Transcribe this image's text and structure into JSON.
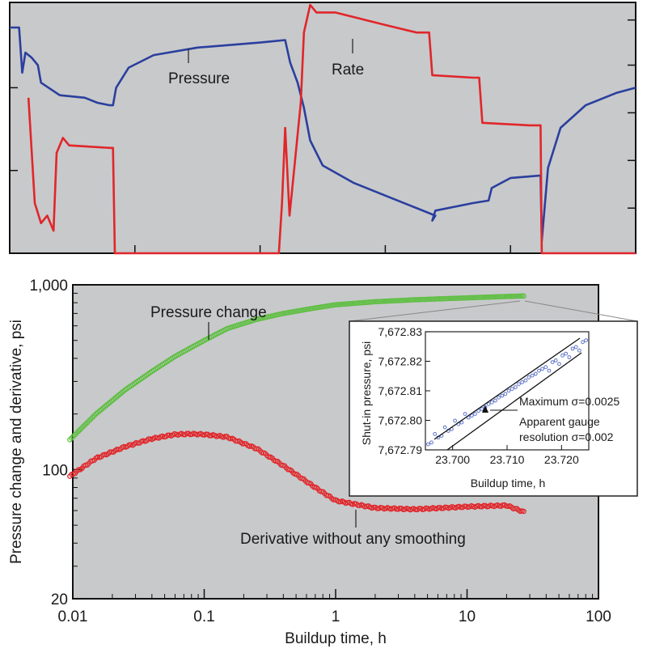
{
  "chart_data": [
    {
      "type": "line",
      "title": "",
      "xlabel": "",
      "ylabel": "",
      "annotations": [
        "Pressure",
        "Rate"
      ],
      "series": [
        {
          "name": "Pressure",
          "color": "#2a3f9e",
          "points": [
            [
              0.0,
              0.9
            ],
            [
              0.015,
              0.9
            ],
            [
              0.02,
              0.72
            ],
            [
              0.025,
              0.8
            ],
            [
              0.035,
              0.78
            ],
            [
              0.045,
              0.75
            ],
            [
              0.05,
              0.68
            ],
            [
              0.08,
              0.63
            ],
            [
              0.12,
              0.62
            ],
            [
              0.14,
              0.6
            ],
            [
              0.16,
              0.59
            ],
            [
              0.165,
              0.59
            ],
            [
              0.17,
              0.66
            ],
            [
              0.19,
              0.74
            ],
            [
              0.23,
              0.79
            ],
            [
              0.3,
              0.82
            ],
            [
              0.4,
              0.84
            ],
            [
              0.44,
              0.85
            ],
            [
              0.448,
              0.76
            ],
            [
              0.46,
              0.68
            ],
            [
              0.47,
              0.58
            ],
            [
              0.48,
              0.45
            ],
            [
              0.5,
              0.35
            ],
            [
              0.55,
              0.28
            ],
            [
              0.62,
              0.21
            ],
            [
              0.68,
              0.15
            ],
            [
              0.675,
              0.13
            ],
            [
              0.68,
              0.17
            ],
            [
              0.74,
              0.2
            ],
            [
              0.765,
              0.21
            ],
            [
              0.77,
              0.26
            ],
            [
              0.8,
              0.3
            ],
            [
              0.848,
              0.31
            ],
            [
              0.85,
              0.05
            ],
            [
              0.86,
              0.34
            ],
            [
              0.88,
              0.5
            ],
            [
              0.92,
              0.59
            ],
            [
              0.97,
              0.64
            ],
            [
              1.0,
              0.66
            ]
          ]
        },
        {
          "name": "Rate",
          "color": "#e0262a",
          "points": [
            [
              0.03,
              0.62
            ],
            [
              0.04,
              0.2
            ],
            [
              0.05,
              0.12
            ],
            [
              0.06,
              0.15
            ],
            [
              0.07,
              0.09
            ],
            [
              0.075,
              0.4
            ],
            [
              0.085,
              0.46
            ],
            [
              0.095,
              0.43
            ],
            [
              0.16,
              0.42
            ],
            [
              0.165,
              0.42
            ],
            [
              0.168,
              0.0
            ],
            [
              0.43,
              0.0
            ],
            [
              0.435,
              0.2
            ],
            [
              0.44,
              0.5
            ],
            [
              0.447,
              0.15
            ],
            [
              0.455,
              0.35
            ],
            [
              0.465,
              0.6
            ],
            [
              0.47,
              0.88
            ],
            [
              0.48,
              0.99
            ],
            [
              0.49,
              0.96
            ],
            [
              0.52,
              0.96
            ],
            [
              0.6,
              0.91
            ],
            [
              0.65,
              0.88
            ],
            [
              0.67,
              0.88
            ],
            [
              0.675,
              0.71
            ],
            [
              0.74,
              0.7
            ],
            [
              0.75,
              0.7
            ],
            [
              0.755,
              0.52
            ],
            [
              0.83,
              0.51
            ],
            [
              0.848,
              0.51
            ],
            [
              0.85,
              0.0
            ],
            [
              1.0,
              0.0
            ]
          ]
        }
      ]
    },
    {
      "type": "scatter",
      "title": "",
      "xlabel": "Buildup time, h",
      "ylabel": "Pressure change and derivative, psi",
      "xscale": "log",
      "yscale": "log",
      "xlim": [
        0.01,
        100
      ],
      "ylim": [
        20,
        1000
      ],
      "xticks": [
        "0.01",
        "0.1",
        "1",
        "10",
        "100"
      ],
      "yticks": [
        "1,000",
        "100",
        "20"
      ],
      "annotations": [
        "Pressure change",
        "Derivative without any smoothing"
      ],
      "series": [
        {
          "name": "Pressure change",
          "color": "#5cbf3f",
          "x": [
            0.0095,
            0.015,
            0.025,
            0.04,
            0.06,
            0.1,
            0.15,
            0.25,
            0.4,
            0.7,
            1,
            2,
            4,
            10,
            20,
            27
          ],
          "y": [
            145,
            200,
            270,
            340,
            410,
            500,
            580,
            650,
            700,
            750,
            780,
            810,
            830,
            850,
            865,
            870
          ]
        },
        {
          "name": "Derivative without any smoothing",
          "color": "#e0262a",
          "x": [
            0.0095,
            0.015,
            0.025,
            0.04,
            0.06,
            0.08,
            0.1,
            0.15,
            0.25,
            0.4,
            0.7,
            1,
            2,
            4,
            10,
            20,
            27
          ],
          "y": [
            92,
            115,
            133,
            147,
            155,
            156,
            155,
            150,
            130,
            105,
            80,
            68,
            62,
            61,
            63,
            64,
            59
          ]
        }
      ],
      "inset": {
        "type": "scatter",
        "xlabel": "Buildup time, h",
        "ylabel": "Shut-in pressure, psi",
        "xlim": [
          23.695,
          23.725
        ],
        "ylim": [
          7672.79,
          7672.83
        ],
        "xticks": [
          "23.700",
          "23.710",
          "23.720"
        ],
        "yticks": [
          "7,672.83",
          "7,672.82",
          "7,672.81",
          "7,672.80",
          "7,672.79"
        ],
        "points_color": "#5b73c8",
        "line_color": "#111111",
        "annotations": [
          "Maximum σ=0.0025",
          "Apparent gauge",
          "resolution σ=0.002"
        ]
      }
    }
  ]
}
